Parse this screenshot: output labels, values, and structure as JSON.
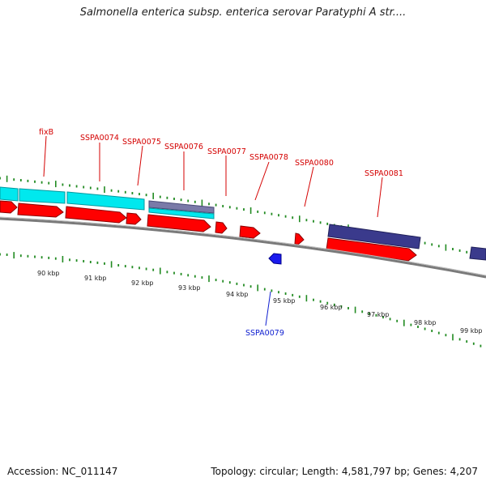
{
  "title": "Salmonella enterica subsp. enterica serovar Paratyphi A str....",
  "footer": {
    "accession": "Accession: NC_011147",
    "summary": "Topology: circular; Length: 4,581,797 bp; Genes: 4,207"
  },
  "colors": {
    "cds": "#ff0000",
    "cds_shadow": "#8a0000",
    "cyan": "#00e8ee",
    "navy": "#3a3a8c",
    "slate": "#7a7aa8",
    "tick": "#228b22",
    "backbone": "#888888",
    "label_red": "#d40000",
    "label_blue": "#1020d0"
  },
  "gene_labels": [
    {
      "text": "fixB",
      "color": "red"
    },
    {
      "text": "SSPA0074",
      "color": "red"
    },
    {
      "text": "SSPA0075",
      "color": "red"
    },
    {
      "text": "SSPA0076",
      "color": "red"
    },
    {
      "text": "SSPA0077",
      "color": "red"
    },
    {
      "text": "SSPA0078",
      "color": "red"
    },
    {
      "text": "SSPA0080",
      "color": "red"
    },
    {
      "text": "SSPA0081",
      "color": "red"
    },
    {
      "text": "SSPA0079",
      "color": "blue"
    }
  ],
  "kbp_labels": [
    "90 kbp",
    "91 kbp",
    "92 kbp",
    "93 kbp",
    "94 kbp",
    "95 kbp",
    "96 kbp",
    "97 kbp",
    "98 kbp",
    "99 kbp"
  ]
}
